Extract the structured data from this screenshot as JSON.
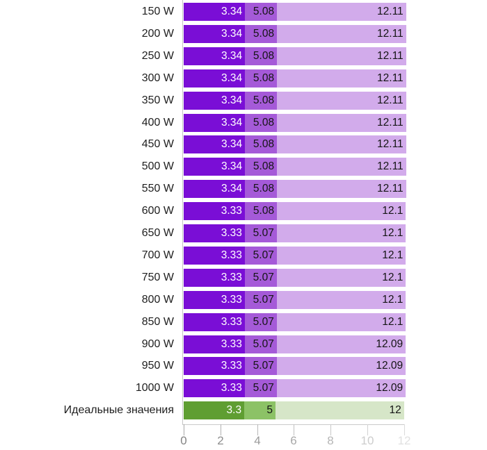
{
  "chart_data": {
    "type": "bar",
    "orientation": "horizontal",
    "value_semantics": "segment boundaries (cumulative positions): 0→v1, v1→v2, v2→v3",
    "title": "",
    "xlabel": "",
    "ylabel": "",
    "xlim": [
      0,
      12
    ],
    "grid": false,
    "legend": "none",
    "x_ticks": [
      0,
      2,
      4,
      6,
      8,
      10,
      12
    ],
    "x_tick_labels": [
      "0",
      "2",
      "4",
      "6",
      "8",
      "10",
      "12"
    ],
    "categories": [
      "150 W",
      "200 W",
      "250 W",
      "300 W",
      "350 W",
      "400 W",
      "450 W",
      "500 W",
      "550 W",
      "600 W",
      "650 W",
      "700 W",
      "750 W",
      "800 W",
      "850 W",
      "900 W",
      "950 W",
      "1000 W",
      "Идеальные значения"
    ],
    "rows": [
      {
        "category": "150 W",
        "boundaries": [
          3.34,
          5.08,
          12.11
        ],
        "labels": [
          "3.34",
          "5.08",
          "12.11"
        ],
        "palette": "purple"
      },
      {
        "category": "200 W",
        "boundaries": [
          3.34,
          5.08,
          12.11
        ],
        "labels": [
          "3.34",
          "5.08",
          "12.11"
        ],
        "palette": "purple"
      },
      {
        "category": "250 W",
        "boundaries": [
          3.34,
          5.08,
          12.11
        ],
        "labels": [
          "3.34",
          "5.08",
          "12.11"
        ],
        "palette": "purple"
      },
      {
        "category": "300 W",
        "boundaries": [
          3.34,
          5.08,
          12.11
        ],
        "labels": [
          "3.34",
          "5.08",
          "12.11"
        ],
        "palette": "purple"
      },
      {
        "category": "350 W",
        "boundaries": [
          3.34,
          5.08,
          12.11
        ],
        "labels": [
          "3.34",
          "5.08",
          "12.11"
        ],
        "palette": "purple"
      },
      {
        "category": "400 W",
        "boundaries": [
          3.34,
          5.08,
          12.11
        ],
        "labels": [
          "3.34",
          "5.08",
          "12.11"
        ],
        "palette": "purple"
      },
      {
        "category": "450 W",
        "boundaries": [
          3.34,
          5.08,
          12.11
        ],
        "labels": [
          "3.34",
          "5.08",
          "12.11"
        ],
        "palette": "purple"
      },
      {
        "category": "500 W",
        "boundaries": [
          3.34,
          5.08,
          12.11
        ],
        "labels": [
          "3.34",
          "5.08",
          "12.11"
        ],
        "palette": "purple"
      },
      {
        "category": "550 W",
        "boundaries": [
          3.34,
          5.08,
          12.11
        ],
        "labels": [
          "3.34",
          "5.08",
          "12.11"
        ],
        "palette": "purple"
      },
      {
        "category": "600 W",
        "boundaries": [
          3.33,
          5.08,
          12.1
        ],
        "labels": [
          "3.33",
          "5.08",
          "12.1"
        ],
        "palette": "purple"
      },
      {
        "category": "650 W",
        "boundaries": [
          3.33,
          5.07,
          12.1
        ],
        "labels": [
          "3.33",
          "5.07",
          "12.1"
        ],
        "palette": "purple"
      },
      {
        "category": "700 W",
        "boundaries": [
          3.33,
          5.07,
          12.1
        ],
        "labels": [
          "3.33",
          "5.07",
          "12.1"
        ],
        "palette": "purple"
      },
      {
        "category": "750 W",
        "boundaries": [
          3.33,
          5.07,
          12.1
        ],
        "labels": [
          "3.33",
          "5.07",
          "12.1"
        ],
        "palette": "purple"
      },
      {
        "category": "800 W",
        "boundaries": [
          3.33,
          5.07,
          12.1
        ],
        "labels": [
          "3.33",
          "5.07",
          "12.1"
        ],
        "palette": "purple"
      },
      {
        "category": "850 W",
        "boundaries": [
          3.33,
          5.07,
          12.1
        ],
        "labels": [
          "3.33",
          "5.07",
          "12.1"
        ],
        "palette": "purple"
      },
      {
        "category": "900 W",
        "boundaries": [
          3.33,
          5.07,
          12.09
        ],
        "labels": [
          "3.33",
          "5.07",
          "12.09"
        ],
        "palette": "purple"
      },
      {
        "category": "950 W",
        "boundaries": [
          3.33,
          5.07,
          12.09
        ],
        "labels": [
          "3.33",
          "5.07",
          "12.09"
        ],
        "palette": "purple"
      },
      {
        "category": "1000 W",
        "boundaries": [
          3.33,
          5.07,
          12.09
        ],
        "labels": [
          "3.33",
          "5.07",
          "12.09"
        ],
        "palette": "purple"
      },
      {
        "category": "Идеальные значения",
        "boundaries": [
          3.3,
          5,
          12
        ],
        "labels": [
          "3.3",
          "5",
          "12"
        ],
        "palette": "green"
      }
    ],
    "palettes": {
      "purple": [
        "#7a0ed6",
        "#a55ad8",
        "#d2abeb"
      ],
      "green": [
        "#5f9e32",
        "#8cc266",
        "#d6e6c8"
      ]
    },
    "segment_label_colors": [
      "#ffffff",
      "#141414",
      "#141414"
    ],
    "axis": {
      "line_color": "#cacaca",
      "tick_line_colors": [
        "#a8a8a8",
        "#b0b0b0",
        "#b8b8b8",
        "#c0c0c0",
        "#c8c8c8",
        "#d2d2d2",
        "#dbdbdb"
      ],
      "tick_label_colors": [
        "#838383",
        "#8e8e8e",
        "#9a9a9a",
        "#a8a8a8",
        "#b6b6b6",
        "#cdcdcd",
        "#e1e1e1"
      ]
    }
  }
}
